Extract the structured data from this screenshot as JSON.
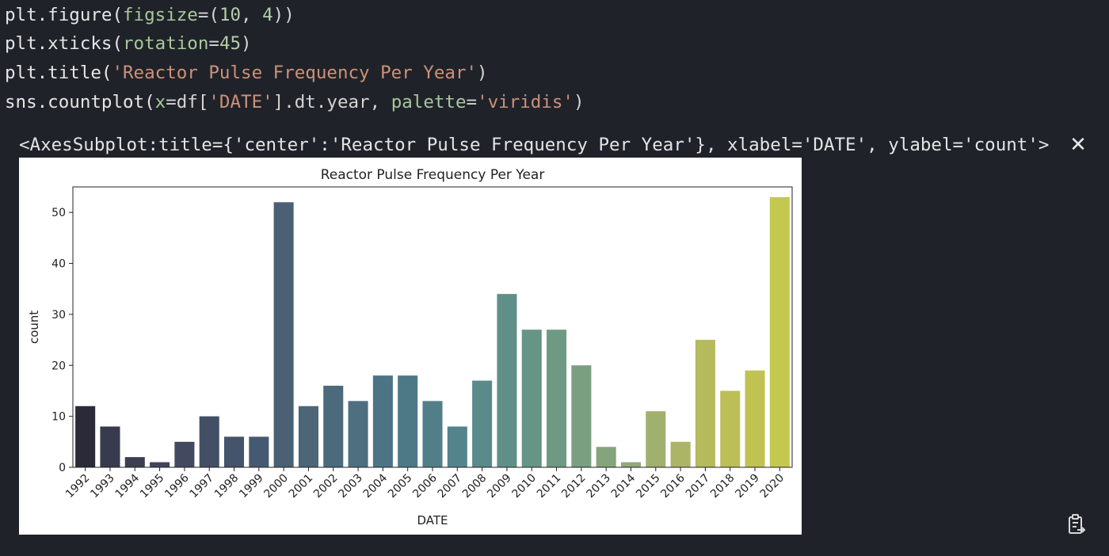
{
  "code_cell": {
    "lines": [
      [
        {
          "t": "plt.figure(",
          "c": "fn"
        },
        {
          "t": "figsize",
          "c": "kw"
        },
        {
          "t": "=(",
          "c": "op"
        },
        {
          "t": "10",
          "c": "num"
        },
        {
          "t": ", ",
          "c": "op"
        },
        {
          "t": "4",
          "c": "num"
        },
        {
          "t": "))",
          "c": "op"
        }
      ],
      [
        {
          "t": "plt.xticks(",
          "c": "fn"
        },
        {
          "t": "rotation",
          "c": "kw"
        },
        {
          "t": "=",
          "c": "op"
        },
        {
          "t": "45",
          "c": "num"
        },
        {
          "t": ")",
          "c": "op"
        }
      ],
      [
        {
          "t": "plt.title(",
          "c": "fn"
        },
        {
          "t": "'Reactor Pulse Frequency Per Year'",
          "c": "str"
        },
        {
          "t": ")",
          "c": "op"
        }
      ],
      [
        {
          "t": "sns.countplot(",
          "c": "fn"
        },
        {
          "t": "x",
          "c": "kw"
        },
        {
          "t": "=df[",
          "c": "op"
        },
        {
          "t": "'DATE'",
          "c": "str"
        },
        {
          "t": "].dt.year, ",
          "c": "op"
        },
        {
          "t": "palette",
          "c": "kw"
        },
        {
          "t": "=",
          "c": "op"
        },
        {
          "t": "'viridis'",
          "c": "str"
        },
        {
          "t": ")",
          "c": "op"
        }
      ]
    ]
  },
  "output": {
    "repr_text": "<AxesSubplot:title={'center':'Reactor Pulse Frequency Per Year'}, xlabel='DATE', ylabel='count'>",
    "close_glyph": "✕",
    "close_icon": "close-icon",
    "copy_icon": "copy-to-clipboard-icon"
  },
  "chart_data": {
    "type": "bar",
    "title": "Reactor Pulse Frequency Per Year",
    "xlabel": "DATE",
    "ylabel": "count",
    "categories": [
      "1992",
      "1993",
      "1994",
      "1995",
      "1996",
      "1997",
      "1998",
      "1999",
      "2000",
      "2001",
      "2002",
      "2003",
      "2004",
      "2005",
      "2006",
      "2007",
      "2008",
      "2009",
      "2010",
      "2011",
      "2012",
      "2013",
      "2014",
      "2015",
      "2016",
      "2017",
      "2018",
      "2019",
      "2020"
    ],
    "values": [
      12,
      8,
      2,
      1,
      5,
      10,
      6,
      6,
      52,
      12,
      16,
      13,
      18,
      18,
      13,
      8,
      17,
      34,
      27,
      27,
      20,
      4,
      1,
      11,
      5,
      25,
      15,
      19,
      53
    ],
    "colors": [
      "#2a2a38",
      "#383a4d",
      "#3c3f52",
      "#404559",
      "#434a5f",
      "#424f65",
      "#44546a",
      "#455a70",
      "#4b6073",
      "#4c6577",
      "#4b6a7c",
      "#4d6f80",
      "#4c7484",
      "#4d7987",
      "#517e89",
      "#54848b",
      "#5a8a89",
      "#608f87",
      "#679585",
      "#6e9a83",
      "#799f80",
      "#85a47c",
      "#92a978",
      "#a0b06f",
      "#abb565",
      "#b5ba5c",
      "#bcbf56",
      "#c0c352",
      "#c4c84f"
    ],
    "ylim": [
      0,
      55
    ],
    "yticks": [
      0,
      10,
      20,
      30,
      40,
      50
    ],
    "xtick_rotation": 45,
    "grid": false,
    "legend": "none"
  }
}
